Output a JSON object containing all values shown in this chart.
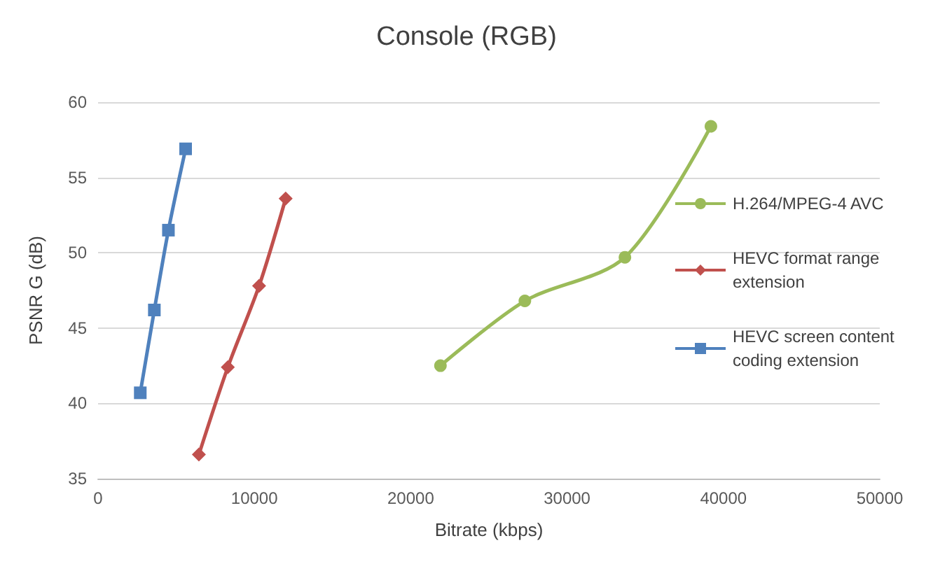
{
  "chart_data": {
    "type": "line",
    "title": "Console (RGB)",
    "xlabel": "Bitrate (kbps)",
    "ylabel": "PSNR G (dB)",
    "xlim": [
      0,
      50000
    ],
    "xticks": [
      0,
      10000,
      20000,
      30000,
      40000,
      50000
    ],
    "ylim": [
      35,
      60
    ],
    "yticks": [
      35,
      40,
      45,
      50,
      55,
      60
    ],
    "grid": "y",
    "legend": "right",
    "series": [
      {
        "name": "H.264/MPEG-4 AVC",
        "color": "#9bbb59",
        "marker": "circle",
        "x": [
          21900,
          27300,
          33700,
          39200
        ],
        "values": [
          42.5,
          46.8,
          49.7,
          58.4
        ]
      },
      {
        "name": "HEVC format range extension",
        "color": "#c0504d",
        "marker": "diamond",
        "x": [
          6450,
          8300,
          10300,
          12000
        ],
        "values": [
          36.6,
          42.4,
          47.8,
          53.6
        ]
      },
      {
        "name": "HEVC screen content coding extension",
        "color": "#4f81bd",
        "marker": "square",
        "x": [
          2700,
          3600,
          4500,
          5600
        ],
        "values": [
          40.7,
          46.2,
          51.5,
          56.9
        ]
      }
    ]
  }
}
